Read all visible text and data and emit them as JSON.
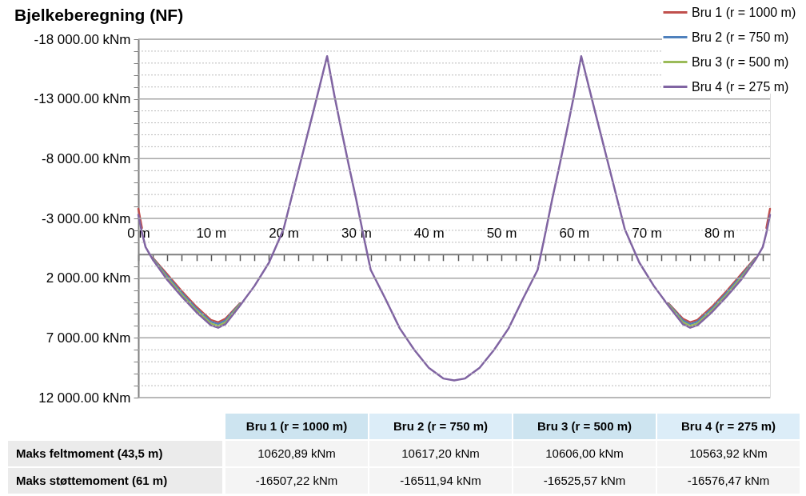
{
  "chart_data": {
    "type": "line",
    "title": "Bjelkeberegning (NF)",
    "x": [
      0,
      0.5,
      1,
      2,
      4,
      6,
      8,
      10,
      11,
      12,
      14,
      16,
      18,
      20,
      22,
      24,
      26,
      27,
      28,
      29,
      30,
      31,
      32,
      34,
      36,
      38,
      40,
      42,
      43.5,
      45,
      47,
      49,
      51,
      53,
      55,
      56,
      57,
      58,
      59,
      60,
      61,
      63,
      65,
      67,
      69,
      71,
      73,
      75,
      76,
      77,
      79,
      81,
      83,
      85,
      86,
      86.5,
      87
    ],
    "series": [
      {
        "name": "Bru 1 (r = 1000 m)",
        "color": "#c0504d",
        "values": [
          -3800,
          -2200,
          null,
          300,
          1700,
          3100,
          4400,
          5500,
          5700,
          5400,
          4100,
          null,
          null,
          null,
          null,
          null,
          null,
          null,
          null,
          null,
          null,
          null,
          null,
          null,
          null,
          null,
          null,
          null,
          null,
          null,
          null,
          null,
          null,
          null,
          null,
          null,
          null,
          null,
          null,
          null,
          null,
          null,
          null,
          null,
          null,
          null,
          4100,
          5400,
          5700,
          5500,
          4400,
          3100,
          1700,
          300,
          null,
          -2200,
          -3800
        ]
      },
      {
        "name": "Bru 2 (r = 750 m)",
        "color": "#4f81bd",
        "values": [
          null,
          null,
          null,
          350,
          1850,
          3250,
          4550,
          5650,
          5850,
          5550,
          4150,
          null,
          null,
          null,
          null,
          null,
          null,
          null,
          null,
          null,
          null,
          null,
          null,
          null,
          null,
          null,
          null,
          null,
          null,
          null,
          null,
          null,
          null,
          null,
          null,
          null,
          null,
          null,
          null,
          null,
          null,
          null,
          null,
          null,
          null,
          null,
          4150,
          5550,
          5850,
          5650,
          4550,
          3250,
          1850,
          350,
          null,
          null,
          null
        ]
      },
      {
        "name": "Bru 3 (r = 500 m)",
        "color": "#9bbb59",
        "values": [
          null,
          null,
          null,
          400,
          2000,
          3400,
          4700,
          5800,
          6000,
          5700,
          4200,
          null,
          null,
          null,
          null,
          null,
          null,
          null,
          null,
          null,
          null,
          null,
          null,
          null,
          null,
          null,
          null,
          null,
          null,
          null,
          null,
          null,
          null,
          null,
          null,
          null,
          null,
          null,
          null,
          null,
          null,
          null,
          null,
          null,
          null,
          null,
          4200,
          5700,
          6000,
          5800,
          4700,
          3400,
          2000,
          400,
          null,
          null,
          null
        ]
      },
      {
        "name": "Bru 4 (r = 275 m)",
        "color": "#8064a2",
        "values": [
          -3300,
          -1800,
          -600,
          450,
          2150,
          3550,
          4850,
          5950,
          6150,
          5850,
          4300,
          2650,
          700,
          -2100,
          -6900,
          -11700,
          -16580,
          -13300,
          -10300,
          -7400,
          -4600,
          -1600,
          1300,
          3700,
          6200,
          8000,
          9500,
          10400,
          10560,
          10400,
          9500,
          8000,
          6200,
          3700,
          1300,
          -1600,
          -4600,
          -7400,
          -10300,
          -13300,
          -16580,
          -11700,
          -6900,
          -2100,
          700,
          2650,
          4300,
          5850,
          6150,
          5950,
          4850,
          3550,
          2150,
          450,
          -600,
          -1800,
          -3300
        ]
      }
    ],
    "xlim": [
      0,
      87
    ],
    "xticks": [
      {
        "value": 0,
        "label": "0 m"
      },
      {
        "value": 2,
        "label": null
      },
      {
        "value": 4,
        "label": null
      },
      {
        "value": 6,
        "label": null
      },
      {
        "value": 8,
        "label": null
      },
      {
        "value": 10,
        "label": "10 m"
      },
      {
        "value": 12,
        "label": null
      },
      {
        "value": 14,
        "label": null
      },
      {
        "value": 16,
        "label": null
      },
      {
        "value": 18,
        "label": null
      },
      {
        "value": 20,
        "label": "20 m"
      },
      {
        "value": 22,
        "label": null
      },
      {
        "value": 24,
        "label": null
      },
      {
        "value": 26,
        "label": null
      },
      {
        "value": 28,
        "label": null
      },
      {
        "value": 30,
        "label": "30 m"
      },
      {
        "value": 32,
        "label": null
      },
      {
        "value": 34,
        "label": null
      },
      {
        "value": 36,
        "label": null
      },
      {
        "value": 38,
        "label": null
      },
      {
        "value": 40,
        "label": "40 m"
      },
      {
        "value": 42,
        "label": null
      },
      {
        "value": 44,
        "label": null
      },
      {
        "value": 46,
        "label": null
      },
      {
        "value": 48,
        "label": null
      },
      {
        "value": 50,
        "label": "50 m"
      },
      {
        "value": 52,
        "label": null
      },
      {
        "value": 54,
        "label": null
      },
      {
        "value": 56,
        "label": null
      },
      {
        "value": 58,
        "label": null
      },
      {
        "value": 60,
        "label": "60 m"
      },
      {
        "value": 62,
        "label": null
      },
      {
        "value": 64,
        "label": null
      },
      {
        "value": 66,
        "label": null
      },
      {
        "value": 68,
        "label": null
      },
      {
        "value": 70,
        "label": "70 m"
      },
      {
        "value": 72,
        "label": null
      },
      {
        "value": 74,
        "label": null
      },
      {
        "value": 76,
        "label": null
      },
      {
        "value": 78,
        "label": null
      },
      {
        "value": 80,
        "label": "80 m"
      },
      {
        "value": 82,
        "label": null
      },
      {
        "value": 84,
        "label": null
      },
      {
        "value": 86,
        "label": null
      }
    ],
    "ylim": [
      12000,
      -18000
    ],
    "yticks": [
      {
        "value": -18000,
        "label": "-18 000.00 kNm"
      },
      {
        "value": -17000,
        "label": null
      },
      {
        "value": -16000,
        "label": null
      },
      {
        "value": -15000,
        "label": null
      },
      {
        "value": -14000,
        "label": null
      },
      {
        "value": -13000,
        "label": "-13 000.00 kNm"
      },
      {
        "value": -12000,
        "label": null
      },
      {
        "value": -11000,
        "label": null
      },
      {
        "value": -10000,
        "label": null
      },
      {
        "value": -9000,
        "label": null
      },
      {
        "value": -8000,
        "label": "-8 000.00 kNm"
      },
      {
        "value": -7000,
        "label": null
      },
      {
        "value": -6000,
        "label": null
      },
      {
        "value": -5000,
        "label": null
      },
      {
        "value": -4000,
        "label": null
      },
      {
        "value": -3000,
        "label": "-3 000.00 kNm"
      },
      {
        "value": -2000,
        "label": null
      },
      {
        "value": -1000,
        "label": null
      },
      {
        "value": 1000,
        "label": null
      },
      {
        "value": 2000,
        "label": "2 000.00 kNm"
      },
      {
        "value": 3000,
        "label": null
      },
      {
        "value": 4000,
        "label": null
      },
      {
        "value": 5000,
        "label": null
      },
      {
        "value": 6000,
        "label": null
      },
      {
        "value": 7000,
        "label": "7 000.00 kNm"
      },
      {
        "value": 8000,
        "label": null
      },
      {
        "value": 9000,
        "label": null
      },
      {
        "value": 10000,
        "label": null
      },
      {
        "value": 11000,
        "label": null
      },
      {
        "value": 12000,
        "label": "12 000.00 kNm"
      }
    ],
    "grid": "y",
    "legend": "top right",
    "line_style": "solid",
    "marker": "none",
    "annotations": [
      "Maks feltmoment (43,5 m)",
      "10620,89 kNm",
      "10617,20 kNm",
      "10606,00 kNm",
      "10563,92 kNm",
      "Maks støttemoment (61 m)",
      "-16507,22 kNm",
      "-16511,94 kNm",
      "-16525,57 kNm",
      "-16576,47 kNm"
    ]
  }
}
